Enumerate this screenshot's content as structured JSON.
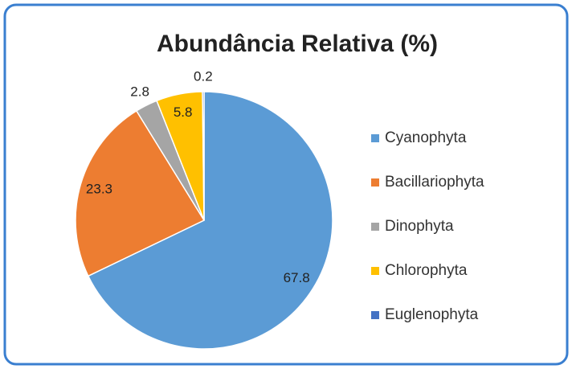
{
  "chart_data": {
    "type": "pie",
    "title": "Abundância Relativa (%)",
    "categories": [
      "Cyanophyta",
      "Bacillariophyta",
      "Dinophyta",
      "Chlorophyta",
      "Euglenophyta"
    ],
    "values": [
      67.8,
      23.3,
      2.8,
      5.8,
      0.2
    ],
    "colors": [
      "#5b9bd5",
      "#ed7d31",
      "#a5a5a5",
      "#ffc000",
      "#4472c4"
    ],
    "legend": "right"
  }
}
